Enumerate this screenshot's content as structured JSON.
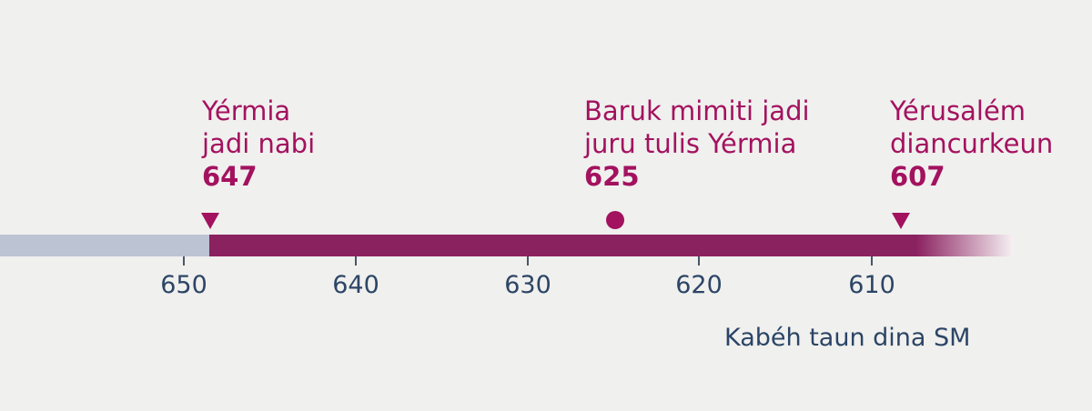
{
  "events": [
    {
      "line1": "Yérmia",
      "line2": "jadi nabi",
      "year": "647",
      "marker": "triangle-down"
    },
    {
      "line1": "Baruk mimiti jadi",
      "line2": "juru tulis Yérmia",
      "year": "625",
      "marker": "circle"
    },
    {
      "line1": "Yérusalém",
      "line2": "diancurkeun",
      "year": "607",
      "marker": "triangle-down"
    }
  ],
  "axis": {
    "ticks": [
      "650",
      "640",
      "630",
      "620",
      "610"
    ],
    "label": "Kabéh taun dina SM"
  },
  "colors": {
    "accent": "#a3125f",
    "bar": "#8b2260",
    "before": "#bcc3d3",
    "axis_text": "#2c4566"
  }
}
